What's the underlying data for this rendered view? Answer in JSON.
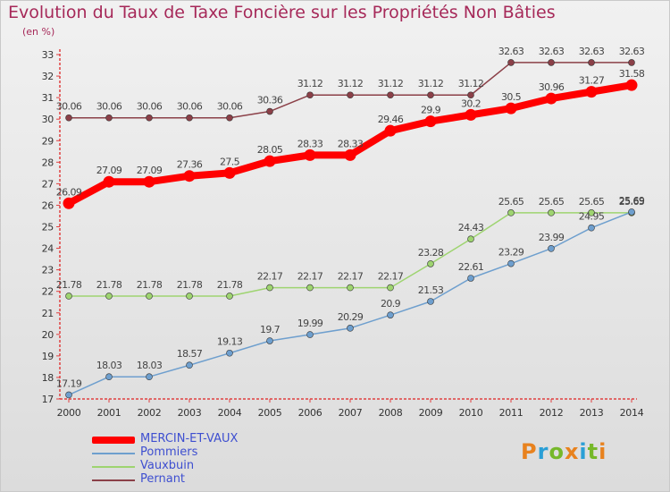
{
  "title": "Evolution du Taux de Taxe Foncière sur les Propriétés Non Bâties",
  "subtitle": "(en %)",
  "logo": {
    "text": "Proxiti",
    "letters": [
      "P",
      "r",
      "o",
      "x",
      "i",
      "t",
      "i"
    ],
    "colors": [
      "#e8821e",
      "#2a9fd6",
      "#76b82a",
      "#e8821e",
      "#2a9fd6",
      "#76b82a",
      "#e8821e"
    ]
  },
  "chart_data": {
    "type": "line",
    "title": "Evolution du Taux de Taxe Foncière sur les Propriétés Non Bâties",
    "ylabel": "(en %)",
    "xlabel": "",
    "x": [
      2000,
      2001,
      2002,
      2003,
      2004,
      2005,
      2006,
      2007,
      2008,
      2009,
      2010,
      2011,
      2012,
      2013,
      2014
    ],
    "ylim": [
      17,
      33
    ],
    "yticks": [
      17,
      18,
      19,
      20,
      21,
      22,
      23,
      24,
      25,
      26,
      27,
      28,
      29,
      30,
      31,
      32,
      33
    ],
    "grid": false,
    "legend_position": "bottom-left",
    "series": [
      {
        "name": "MERCIN-ET-VAUX",
        "color": "#ff0000",
        "bold": true,
        "values": [
          26.09,
          27.09,
          27.09,
          27.36,
          27.5,
          28.05,
          28.33,
          28.33,
          29.46,
          29.9,
          30.2,
          30.5,
          30.96,
          31.27,
          31.58
        ],
        "labels": [
          "26.09",
          "27.09",
          "27.09",
          "27.36",
          "27.5",
          "28.05",
          "28.33",
          "28.33",
          "29.46",
          "29.9",
          "30.2",
          "30.5",
          "30.96",
          "31.27",
          "31.58"
        ]
      },
      {
        "name": "Pommiers",
        "color": "#6e9fce",
        "bold": false,
        "values": [
          17.19,
          18.03,
          18.03,
          18.57,
          19.13,
          19.7,
          19.99,
          20.29,
          20.9,
          21.53,
          22.61,
          23.29,
          23.99,
          24.95,
          25.69
        ],
        "labels": [
          "17.19",
          "18.03",
          "18.03",
          "18.57",
          "19.13",
          "19.7",
          "19.99",
          "20.29",
          "20.9",
          "21.53",
          "22.61",
          "23.29",
          "23.99",
          "24.95",
          "25.69"
        ]
      },
      {
        "name": "Vauxbuin",
        "color": "#9ed470",
        "bold": false,
        "values": [
          21.78,
          21.78,
          21.78,
          21.78,
          21.78,
          22.17,
          22.17,
          22.17,
          22.17,
          23.28,
          24.43,
          25.65,
          25.65,
          25.65,
          25.65
        ],
        "labels": [
          "21.78",
          "21.78",
          "21.78",
          "21.78",
          "21.78",
          "22.17",
          "22.17",
          "22.17",
          "22.17",
          "23.28",
          "24.43",
          "25.65",
          "25.65",
          "25.65",
          "25.65"
        ]
      },
      {
        "name": "Pernant",
        "color": "#8b4048",
        "bold": false,
        "values": [
          30.06,
          30.06,
          30.06,
          30.06,
          30.06,
          30.36,
          31.12,
          31.12,
          31.12,
          31.12,
          31.12,
          32.63,
          32.63,
          32.63,
          32.63
        ],
        "labels": [
          "30.06",
          "30.06",
          "30.06",
          "30.06",
          "30.06",
          "30.36",
          "31.12",
          "31.12",
          "31.12",
          "31.12",
          "31.12",
          "32.63",
          "32.63",
          "32.63",
          "32.63"
        ]
      }
    ]
  }
}
